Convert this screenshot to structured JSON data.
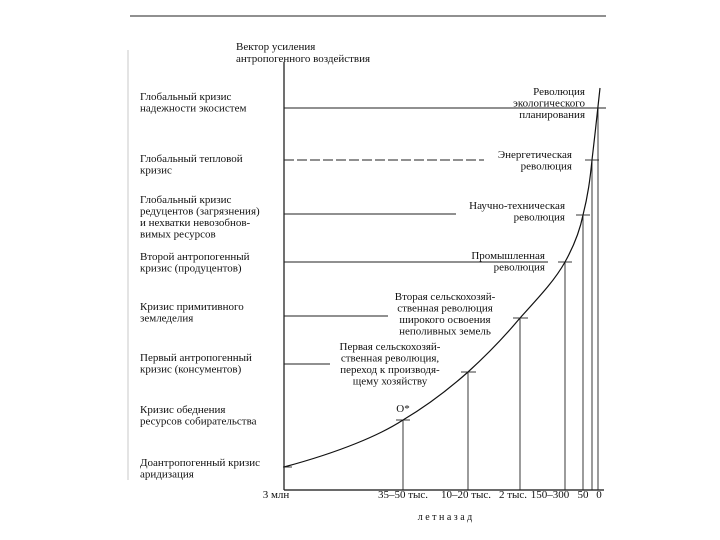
{
  "title": [
    "Вектор усиления",
    "антропогенного воздействия"
  ],
  "crises": [
    {
      "lines": [
        "Глобальный кризис",
        "надежности экосистем"
      ]
    },
    {
      "lines": [
        "Глобальный тепловой",
        "кризис"
      ]
    },
    {
      "lines": [
        "Глобальный кризис",
        "редуцентов (загрязнения)",
        "и нехватки невозобнов-",
        "вимых ресурсов"
      ]
    },
    {
      "lines": [
        "Второй антропогенный",
        "кризис (продуцентов)"
      ]
    },
    {
      "lines": [
        "Кризис примитивного",
        "земледелия"
      ]
    },
    {
      "lines": [
        "Первый антропогенный",
        "кризис (консументов)"
      ]
    },
    {
      "lines": [
        "Кризис обеднения",
        "ресурсов собирательства"
      ]
    },
    {
      "lines": [
        "Доантропогенный кризис",
        "аридизация"
      ]
    }
  ],
  "revolutions": [
    {
      "lines": [
        "Революция",
        "экологического",
        "планирования"
      ]
    },
    {
      "lines": [
        "Энергетическая",
        "революция"
      ]
    },
    {
      "lines": [
        "Научно-техническая",
        "революция"
      ]
    },
    {
      "lines": [
        "Промышленная",
        "революция"
      ]
    },
    {
      "lines": [
        "Вторая сельскохозяй-",
        "ственная революция",
        "широкого освоения",
        "неполивных земель"
      ]
    },
    {
      "lines": [
        "Первая сельскохозяй-",
        "ственная революция,",
        "переход к производя-",
        "щему хозяйству"
      ]
    }
  ],
  "point_label": "O*",
  "x_labels": [
    "3 млн",
    "35–50 тыс.",
    "10–20 тыс.",
    "2 тыс.",
    "150–300",
    "50",
    "0"
  ],
  "x_unit": "л е т     н а з а д"
}
